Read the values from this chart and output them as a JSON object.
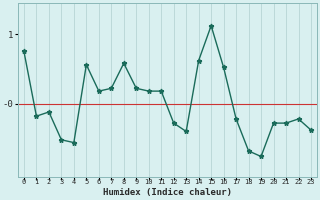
{
  "x": [
    0,
    1,
    2,
    3,
    4,
    5,
    6,
    7,
    8,
    9,
    10,
    11,
    12,
    13,
    14,
    15,
    16,
    17,
    18,
    19,
    20,
    21,
    22,
    23
  ],
  "y": [
    0.75,
    -0.18,
    -0.12,
    -0.52,
    -0.56,
    0.56,
    0.18,
    0.22,
    0.58,
    0.22,
    0.18,
    0.18,
    -0.28,
    -0.4,
    0.62,
    1.12,
    0.52,
    -0.22,
    -0.68,
    -0.76,
    -0.28,
    -0.28,
    -0.22,
    -0.38
  ],
  "line_color": "#1a6b5a",
  "marker": "*",
  "markersize": 3.5,
  "linewidth": 1.0,
  "xlabel": "Humidex (Indice chaleur)",
  "ylim": [
    -1.05,
    1.45
  ],
  "xlim": [
    -0.5,
    23.5
  ],
  "hline_y": 0.0,
  "hline_color": "#cc3333",
  "bg_color": "#d9f0f0",
  "grid_color": "#b0d0d0",
  "ytick_vals": [
    1.0,
    0.0
  ],
  "ytick_labels": [
    "1",
    "-0"
  ]
}
